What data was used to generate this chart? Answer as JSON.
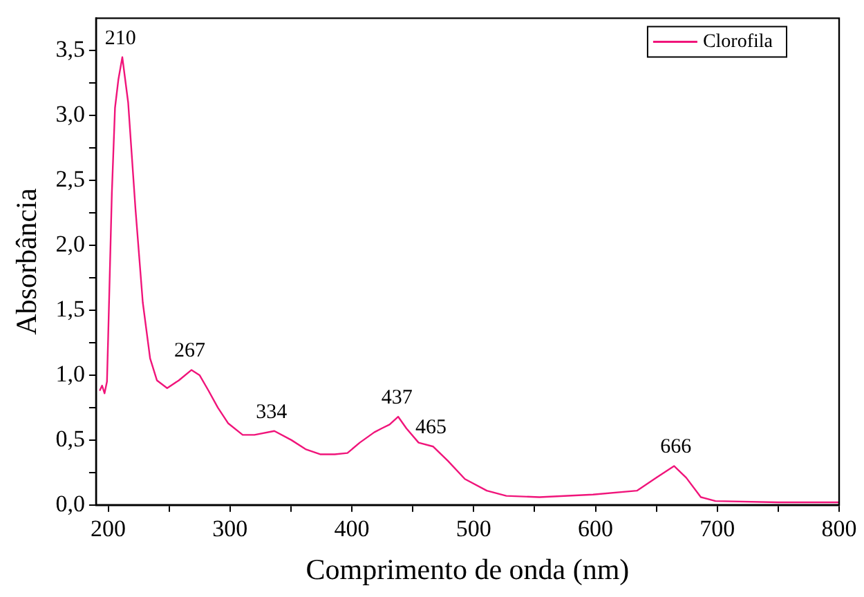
{
  "chart_data": {
    "type": "line",
    "xlabel": "Comprimento de onda (nm)",
    "ylabel": "Absorbância",
    "series": [
      {
        "name": "Clorofila",
        "color": "#f0147a",
        "x": [
          193,
          195,
          197,
          199,
          200,
          203,
          205.6,
          208.4,
          211.6,
          216.4,
          222.4,
          228.4,
          234.4,
          240,
          248.4,
          258,
          268.4,
          275,
          282.4,
          290,
          298.4,
          310.4,
          320,
          336.4,
          350.4,
          362,
          374.4,
          386,
          396.4,
          406.5,
          418.4,
          424.5,
          431,
          438,
          444.8,
          454.8,
          466.8,
          478.8,
          492.8,
          510.8,
          526.8,
          554,
          598,
          634,
          650,
          664.5,
          674.5,
          686.5,
          698.5,
          750,
          800
        ],
        "values": [
          0.88,
          0.92,
          0.86,
          0.95,
          1.3,
          2.4,
          3.06,
          3.28,
          3.45,
          3.1,
          2.28,
          1.56,
          1.13,
          0.96,
          0.9,
          0.96,
          1.04,
          1.0,
          0.88,
          0.75,
          0.63,
          0.54,
          0.54,
          0.57,
          0.5,
          0.43,
          0.39,
          0.39,
          0.4,
          0.48,
          0.56,
          0.59,
          0.62,
          0.68,
          0.59,
          0.48,
          0.45,
          0.34,
          0.2,
          0.11,
          0.07,
          0.06,
          0.08,
          0.11,
          0.21,
          0.3,
          0.21,
          0.06,
          0.03,
          0.02,
          0.02
        ]
      }
    ],
    "xlim": [
      190,
      800
    ],
    "ylim": [
      0,
      3.75
    ],
    "xticks": [
      200,
      {
        "value": 250,
        "label": null
      },
      300,
      {
        "value": 350,
        "label": null
      },
      400,
      {
        "value": 450,
        "label": null
      },
      500,
      {
        "value": 550,
        "label": null
      },
      600,
      {
        "value": 650,
        "label": null
      },
      700,
      {
        "value": 750,
        "label": null
      },
      800
    ],
    "yticks": [
      {
        "value": 0,
        "label": "0,0"
      },
      {
        "value": 0.25,
        "label": null
      },
      {
        "value": 0.5,
        "label": "0,5"
      },
      {
        "value": 0.75,
        "label": null
      },
      {
        "value": 1,
        "label": "1,0"
      },
      {
        "value": 1.25,
        "label": null
      },
      {
        "value": 1.5,
        "label": "1,5"
      },
      {
        "value": 1.75,
        "label": null
      },
      {
        "value": 2,
        "label": "2,0"
      },
      {
        "value": 2.25,
        "label": null
      },
      {
        "value": 2.5,
        "label": "2,5"
      },
      {
        "value": 2.75,
        "label": null
      },
      {
        "value": 3,
        "label": "3,0"
      },
      {
        "value": 3.25,
        "label": null
      },
      {
        "value": 3.5,
        "label": "3,5"
      }
    ],
    "annotations": [
      {
        "text": "210",
        "x": 210,
        "y": 3.45
      },
      {
        "text": "267",
        "x": 267,
        "y": 1.04
      },
      {
        "text": "334",
        "x": 334,
        "y": 0.57
      },
      {
        "text": "437",
        "x": 437,
        "y": 0.68
      },
      {
        "text": "465",
        "x": 465,
        "y": 0.45
      },
      {
        "text": "666",
        "x": 666,
        "y": 0.3
      }
    ],
    "grid": false,
    "legend": "top right",
    "marker": "none",
    "line_style": "solid"
  }
}
